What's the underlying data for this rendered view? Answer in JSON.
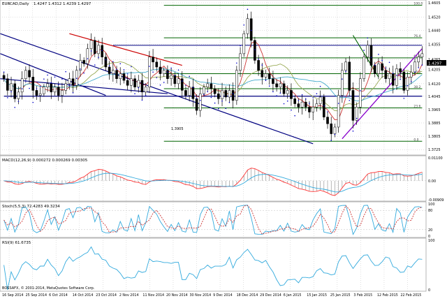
{
  "window": {
    "symbol_header": "EURCAD,Daily",
    "ohlc": "1.4247 1.4312 1.4239 1.4297",
    "copyright": "BOSSAFX, © 2001-2014, MetaQuotes Software Corp.",
    "current_price_label": "1.4297"
  },
  "colors": {
    "background": "#ffffff",
    "grid": "#c0c0c0",
    "candle": "#000000",
    "sar_dots": "#0000cc",
    "downtrend_red": "#cc0000",
    "downtrend_navy": "#000080",
    "uptrend_purple": "#8800cc",
    "fib_green": "#006400",
    "ma_red": "#cc3333",
    "ma_teal": "#44aacc",
    "ma_olive": "#99aa55",
    "macd_line": "#ff3333",
    "signal_line": "#33aadd",
    "stoch_main": "#33aadd",
    "stoch_signal": "#cc3333",
    "rsi_line": "#33aadd"
  },
  "chart_data": [
    {
      "type": "candlestick",
      "panel": "price",
      "ylim": [
        1.3705,
        1.4605
      ],
      "y_ticks": [
        "1.4605",
        "1.4520",
        "1.4440",
        "1.4355",
        "1.4265",
        "1.4205",
        "1.4120",
        "1.4045",
        "1.3965",
        "1.3885",
        "1.3805",
        "1.3725"
      ],
      "fib_levels": [
        {
          "label": "100.0",
          "value": 1.459
        },
        {
          "label": "76.4",
          "value": 1.4395
        },
        {
          "label": "61.8",
          "value": 1.4275
        },
        {
          "label": "50.0",
          "value": 1.418
        },
        {
          "label": "38.2",
          "value": 1.409
        },
        {
          "label": "23.6",
          "value": 1.3975
        },
        {
          "label": "0.0",
          "value": 1.3775
        }
      ],
      "close": [
        1.415,
        1.408,
        1.412,
        1.403,
        1.407,
        1.415,
        1.42,
        1.416,
        1.408,
        1.405,
        1.406,
        1.41,
        1.412,
        1.407,
        1.41,
        1.405,
        1.408,
        1.412,
        1.415,
        1.411,
        1.42,
        1.426,
        1.424,
        1.433,
        1.438,
        1.43,
        1.435,
        1.428,
        1.422,
        1.418,
        1.42,
        1.415,
        1.418,
        1.414,
        1.411,
        1.415,
        1.41,
        1.414,
        1.407,
        1.41,
        1.428,
        1.425,
        1.422,
        1.418,
        1.42,
        1.415,
        1.417,
        1.412,
        1.415,
        1.408,
        1.405,
        1.41,
        1.403,
        1.396,
        1.406,
        1.41,
        1.412,
        1.409,
        1.406,
        1.403,
        1.408,
        1.404,
        1.408,
        1.402,
        1.42,
        1.43,
        1.442,
        1.451,
        1.438,
        1.426,
        1.42,
        1.416,
        1.418,
        1.415,
        1.412,
        1.41,
        1.412,
        1.406,
        1.408,
        1.403,
        1.4,
        1.398,
        1.401,
        1.398,
        1.395,
        1.398,
        1.4,
        1.404,
        1.392,
        1.388,
        1.382,
        1.386,
        1.405,
        1.42,
        1.425,
        1.408,
        1.39,
        1.398,
        1.415,
        1.428,
        1.435,
        1.423,
        1.418,
        1.424,
        1.42,
        1.415,
        1.418,
        1.411,
        1.421,
        1.419,
        1.408,
        1.416,
        1.419,
        1.425,
        1.428,
        1.43
      ],
      "annotations": [
        "1.3725",
        "1.3905"
      ]
    },
    {
      "type": "line",
      "panel": "macd",
      "title": "MACD(12,26,9) 0.000272 0.000269 0.00305",
      "y_ticks": [
        "0.01100",
        "0.00",
        "-0.00909"
      ],
      "ylim": [
        -0.0091,
        0.011
      ]
    },
    {
      "type": "line",
      "panel": "stochastic",
      "title": "Stoch(5,5,3) 72.4283 49.3234",
      "y_ticks": [
        "100",
        "80",
        "20",
        "0"
      ],
      "ylim": [
        0,
        100
      ]
    },
    {
      "type": "line",
      "panel": "rsi",
      "title": "RSI(9) 61.6735",
      "y_ticks": [
        "100",
        "0"
      ],
      "ylim": [
        0,
        100
      ]
    }
  ],
  "x_axis_labels": [
    "16 Sep 2014",
    "25 Sep 2014",
    "6 Oct 2014",
    "14 Oct 2014",
    "23 Oct 2014",
    "2 Nov 2014",
    "11 Nov 2014",
    "20 Nov 2014",
    "30 Nov 2014",
    "9 Dec 2014",
    "18 Dec 2014",
    "29 Dec 2014",
    "6 Jan 2015",
    "15 Jan 2015",
    "25 Jan 2015",
    "3 Feb 2015",
    "12 Feb 2015",
    "22 Feb 2015"
  ]
}
